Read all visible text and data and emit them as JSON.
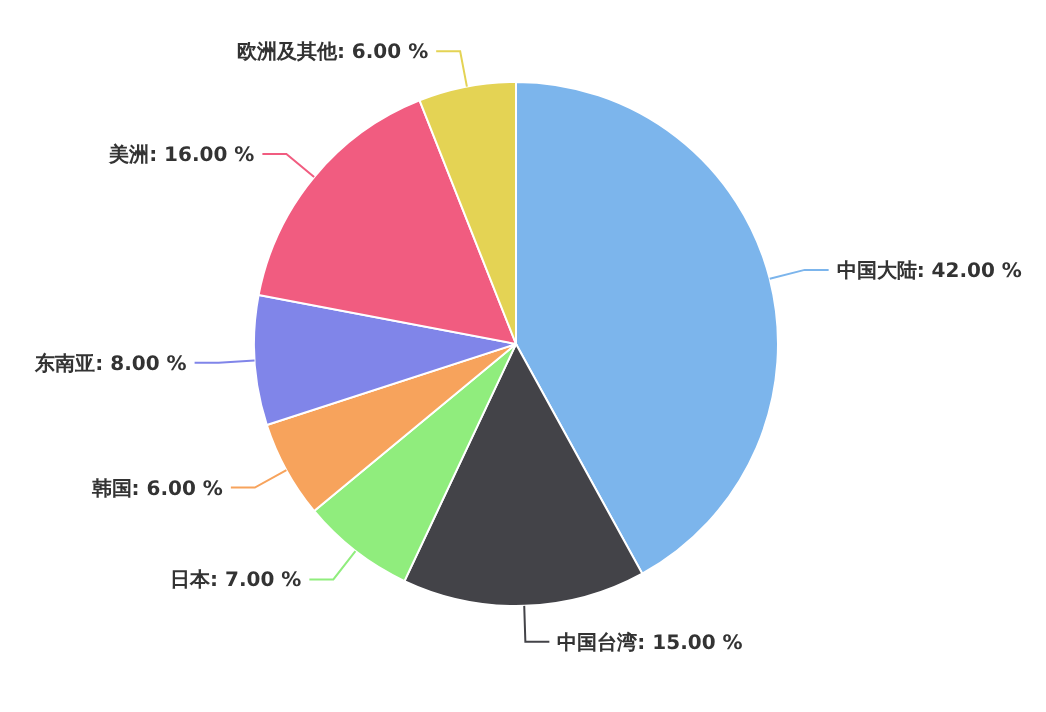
{
  "chart_data": {
    "type": "pie",
    "categories": [
      "中国大陆",
      "中国台湾",
      "日本",
      "韩国",
      "东南亚",
      "美洲",
      "欧洲及其他"
    ],
    "values": [
      42,
      15,
      7,
      6,
      8,
      16,
      6
    ],
    "colors": [
      "#7cb5ec",
      "#434348",
      "#90ed7d",
      "#f7a35c",
      "#8085e9",
      "#f15c80",
      "#e4d354"
    ],
    "value_labels": [
      ": 42.00 %",
      ": 15.00 %",
      ": 7.00 %",
      ": 6.00 %",
      ": 8.00 %",
      ": 16.00 %",
      ": 6.00 %"
    ]
  }
}
